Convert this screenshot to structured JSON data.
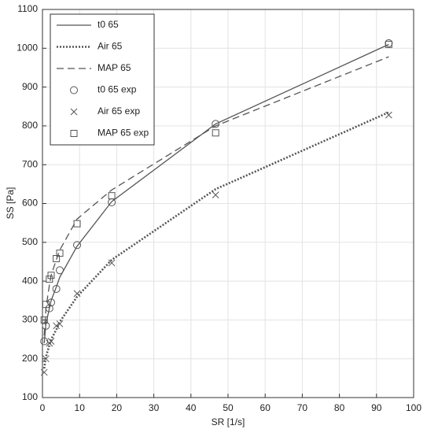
{
  "chart_data": {
    "type": "line",
    "x_label": "SR [1/s]",
    "y_label": "SS [Pa]",
    "x": [
      0.47,
      0.93,
      1.87,
      2.33,
      3.73,
      4.66,
      9.33,
      18.66,
      46.65,
      93.3
    ],
    "xlim": [
      0,
      100
    ],
    "xticks": [
      0,
      10,
      20,
      30,
      40,
      50,
      60,
      70,
      80,
      90,
      100
    ],
    "ylim": [
      100,
      1100
    ],
    "yticks": [
      100,
      200,
      300,
      400,
      500,
      600,
      700,
      800,
      900,
      1000,
      1100
    ],
    "grid": true,
    "legend": "upper left",
    "series": [
      {
        "name": "t0 65",
        "color": "#555555",
        "line_style": "solid",
        "values": [
          240,
          290,
          330,
          350,
          385,
          410,
          490,
          605,
          805,
          1010
        ]
      },
      {
        "name": "Air 65",
        "color": "#555555",
        "line_style": "dotted",
        "values": [
          175,
          205,
          235,
          250,
          275,
          295,
          360,
          455,
          637,
          835
        ]
      },
      {
        "name": "MAP 65",
        "color": "#555555",
        "line_style": "dashed",
        "values": [
          260,
          330,
          390,
          415,
          455,
          480,
          560,
          635,
          800,
          978
        ]
      },
      {
        "name": "t0 65 exp",
        "color": "#555555",
        "marker": "circle",
        "values": [
          245,
          285,
          330,
          345,
          380,
          428,
          493,
          603,
          805,
          1013
        ]
      },
      {
        "name": "Air 65 exp",
        "color": "#555555",
        "marker": "cross",
        "values": [
          165,
          200,
          240,
          245,
          285,
          290,
          368,
          447,
          622,
          828
        ]
      },
      {
        "name": "MAP 65 exp",
        "color": "#555555",
        "marker": "square",
        "values": [
          300,
          340,
          405,
          415,
          458,
          472,
          548,
          620,
          782,
          1010
        ]
      }
    ]
  }
}
